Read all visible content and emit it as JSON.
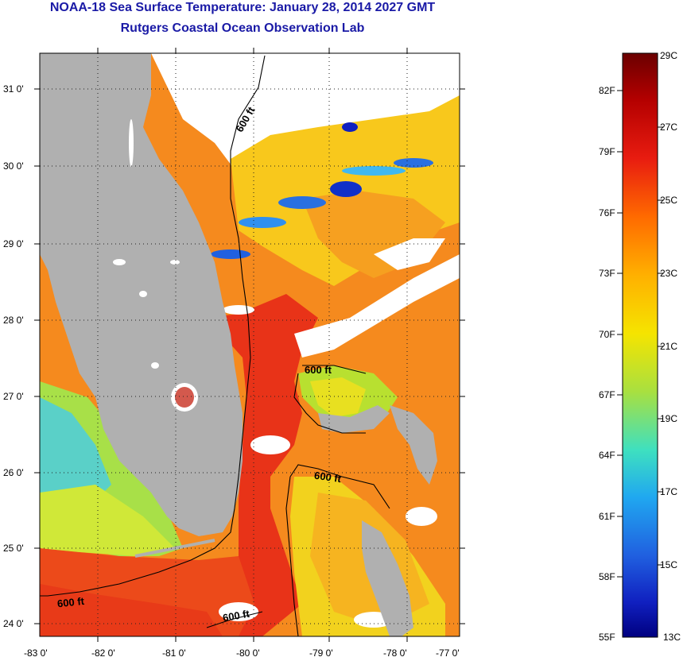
{
  "title": "NOAA-18 Sea Surface Temperature:  January 28, 2014 2027 GMT",
  "subtitle": "Rutgers Coastal Ocean Observation Lab",
  "map": {
    "lat_labels": [
      "31 0'",
      "30 0'",
      "29 0'",
      "28 0'",
      "27 0'",
      "26 0'",
      "25 0'",
      "24 0'"
    ],
    "lon_labels": [
      "-83 0'",
      "-82 0'",
      "-81 0'",
      "-80 0'",
      "-79 0'",
      "-78 0'",
      "-77 0'"
    ],
    "contour_label": "600 ft"
  },
  "colorbar": {
    "celsius_labels": [
      "29C",
      "27C",
      "25C",
      "23C",
      "21C",
      "19C",
      "17C",
      "15C",
      "13C"
    ],
    "fahrenheit_labels": [
      "82F",
      "79F",
      "76F",
      "73F",
      "70F",
      "67F",
      "64F",
      "61F",
      "58F",
      "55F"
    ],
    "colors": [
      "#6b0000",
      "#b40000",
      "#e81c10",
      "#ff6a00",
      "#ffb000",
      "#f5e400",
      "#a8e040",
      "#3ee0c0",
      "#20a8f0",
      "#2060e0",
      "#1020c0",
      "#000080"
    ]
  }
}
